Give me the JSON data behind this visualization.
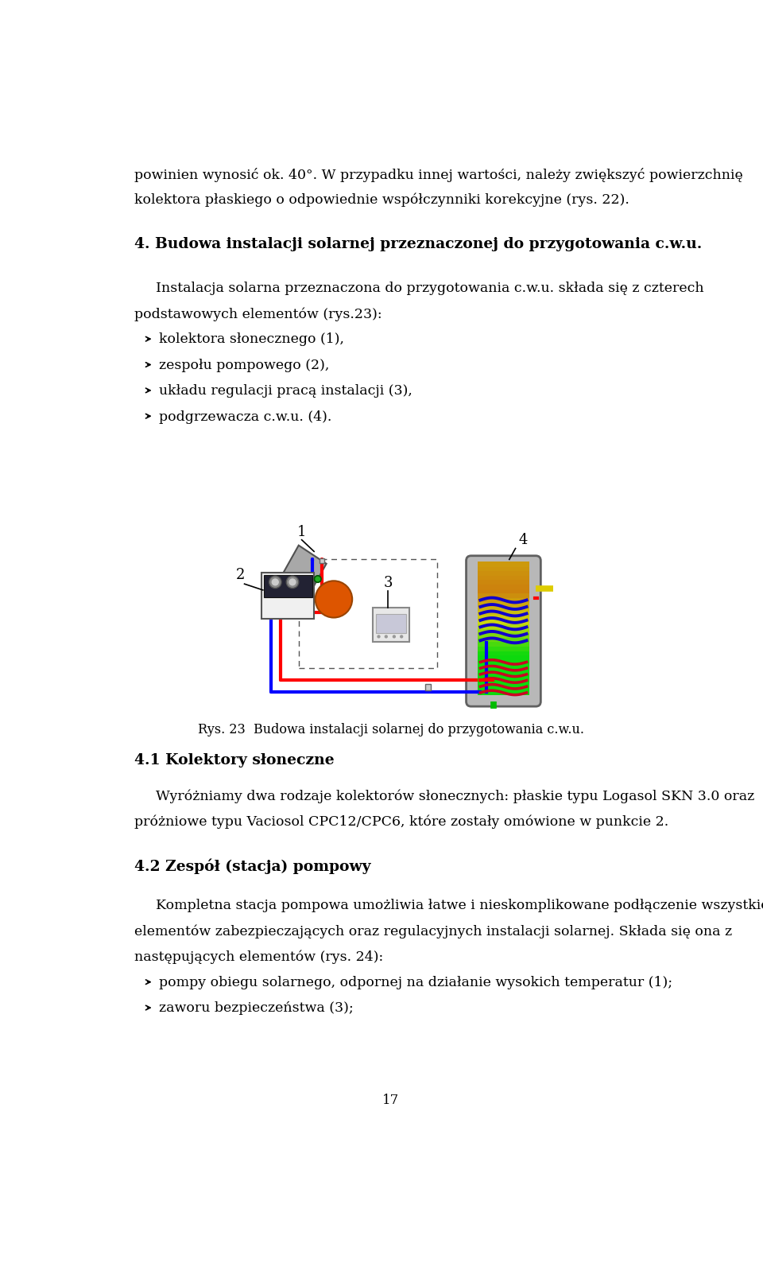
{
  "bg_color": "#ffffff",
  "page_width": 9.6,
  "page_height": 15.88,
  "text_color": "#000000",
  "font_size_body": 12.5,
  "font_size_heading": 13.5,
  "font_size_caption": 11.5,
  "font_size_page_num": 12,
  "line1": "powinien wynosić ok. 40°. W przypadku innej wartości, należy zwiększyć powierzchnię",
  "line2": "kolektora płaskiego o odpowiednie współczynniki korekcyjne (rys. 22).",
  "heading1": "4. Budowa instalacji solarnej przeznaczonej do przygotowania c.w.u.",
  "para1_line1": "Instalacja solarna przeznaczona do przygotowania c.w.u. składa się z czterech",
  "para1_line2": "podstawowych elementów (rys.23):",
  "bullet1": "> kolektora słonecznego (1),",
  "bullet2": "> zespołu pompowego (2),",
  "bullet3": "> układu regulacji pracą instalacji (3),",
  "bullet4": "> podgrzewacza c.w.u. (4).",
  "caption": "Rys. 23  Budowa instalacji solarnej do przygotowania c.w.u.",
  "heading2": "4.1 Kolektory słoneczne",
  "para2_line1": "Wyróżniamy dwa rodzaje kolektorów słonecznych: płaskie typu Logasol SKN 3.0 oraz",
  "para2_line2": "próżniowe typu Vaciosol CPC12/CPC6, które zostały omówione w punkcie 2.",
  "heading3": "4.2 Zespół (stacja) pompowy",
  "para3_line1": "Kompletna stacja pompowa umożliwia łatwe i nieskomplikowane podłączenie wszystkich",
  "para3_line2": "elementów zabezpieczających oraz regulacyjnych instalacji solarnej. Składa się ona z",
  "para3_line3": "następujących elementów (rys. 24):",
  "bullet5": "> pompy obiegu solarnego, odpornej na działanie wysokich temperatur (1);",
  "bullet6": "> zaworu bezpieczeństwa (3);",
  "page_number": "17"
}
